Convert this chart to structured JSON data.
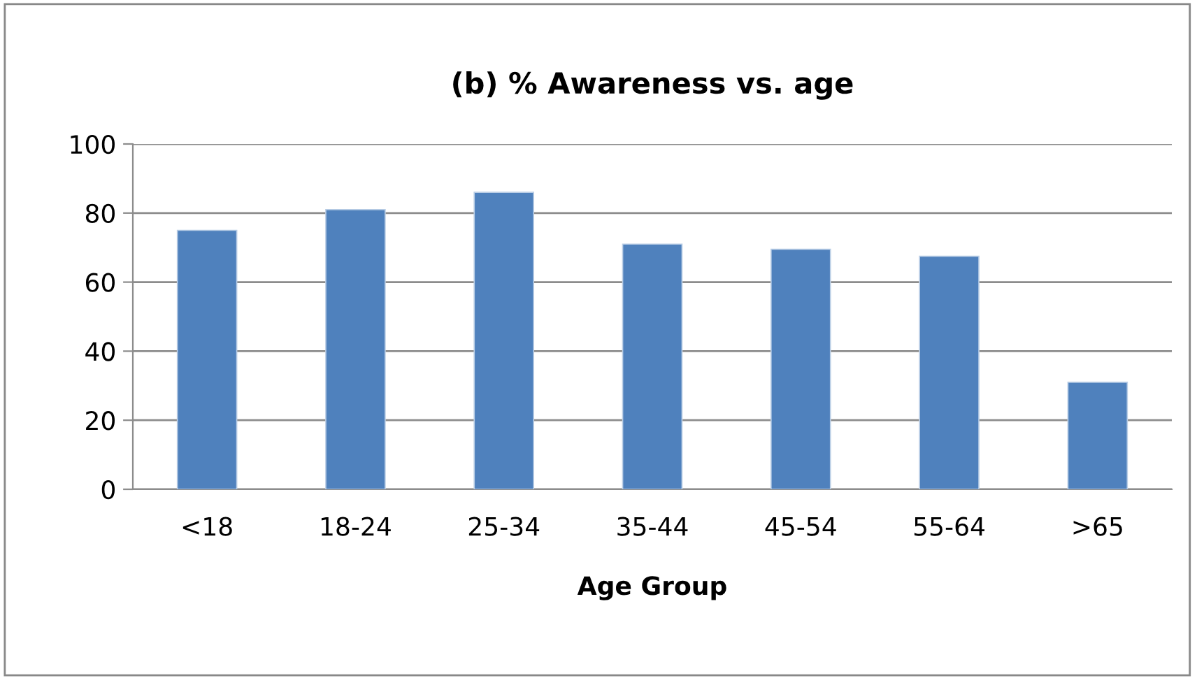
{
  "chart_data": {
    "type": "bar",
    "title": "(b) % Awareness vs. age",
    "xlabel": "Age Group",
    "categories": [
      "<18",
      "18-24",
      "25-34",
      "35-44",
      "45-54",
      "55-64",
      ">65"
    ],
    "values": [
      75,
      81,
      86,
      71,
      69.5,
      67.5,
      31
    ],
    "color": "#4f81bd",
    "ylim": [
      0,
      100
    ],
    "yticks": [
      0,
      20,
      40,
      60,
      80,
      100
    ],
    "grid": "y",
    "legend": false
  }
}
